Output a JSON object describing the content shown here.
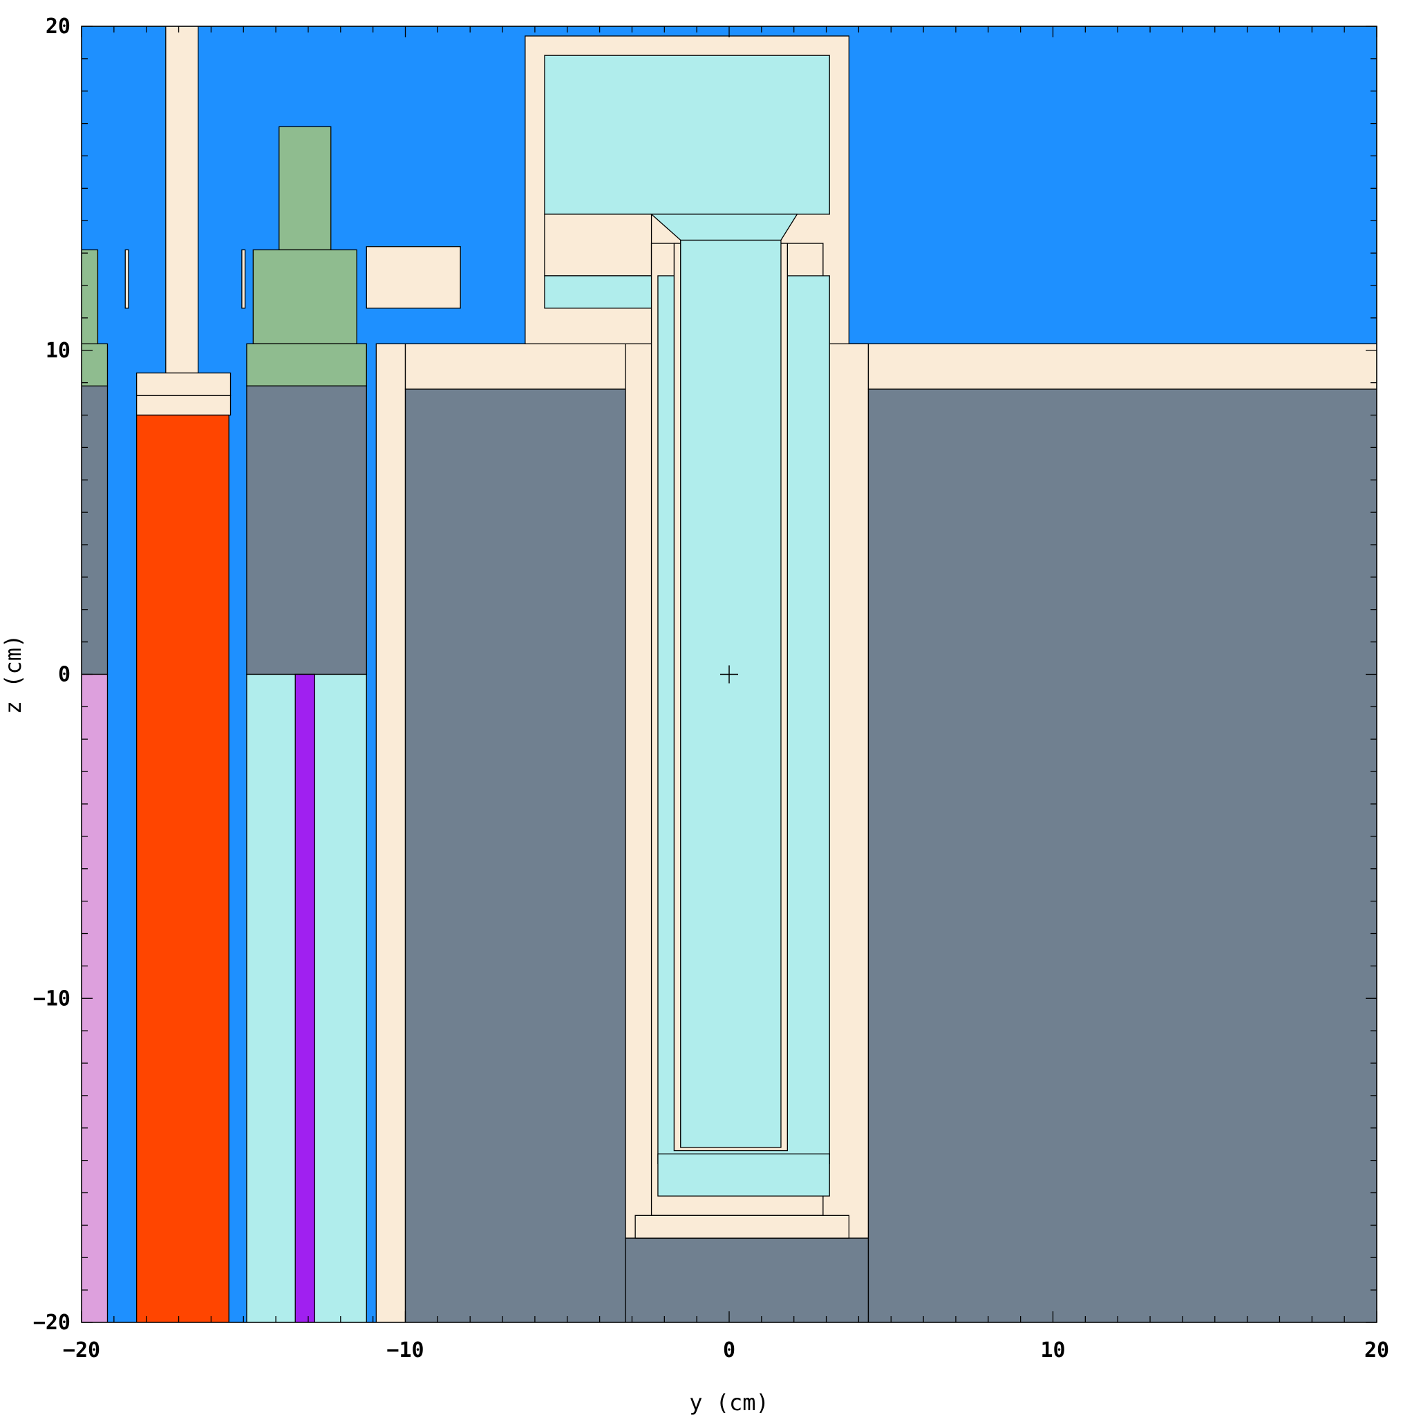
{
  "axes": {
    "x_label": "y (cm)",
    "y_label": "z (cm)",
    "x_range": [
      -20,
      20
    ],
    "y_range": [
      -20,
      20
    ],
    "x_major_ticks": [
      -20,
      -10,
      0,
      10,
      20
    ],
    "y_major_ticks": [
      -20,
      -10,
      0,
      10,
      20
    ],
    "x_tick_labels": [
      "−20",
      "−10",
      "0",
      "10",
      "20"
    ],
    "y_tick_labels": [
      "−20",
      "−10",
      "0",
      "10",
      "20"
    ],
    "minor_tick_step": 1
  },
  "colors": {
    "water": "#1E90FF",
    "steel": "#FAEBD7",
    "concrete": "#708090",
    "graphite": "#8FBC8F",
    "fuel": "#FF4500",
    "light_cyan": "#B0EDEC",
    "orchid": "#DDA0DD",
    "violet": "#A020F0"
  },
  "origin_marker": {
    "y": 0,
    "z": 0
  },
  "regions": [
    {
      "m": "water",
      "y0": -20,
      "y1": 20,
      "z0": -20,
      "z1": 20
    },
    {
      "m": "concrete",
      "y0": -20,
      "y1": -19.2,
      "z0": 0,
      "z1": 8.9
    },
    {
      "m": "orchid",
      "y0": -20,
      "y1": -19.2,
      "z0": -20,
      "z1": 0
    },
    {
      "m": "graphite",
      "y0": -20,
      "y1": -19.2,
      "z0": 8.9,
      "z1": 10.2
    },
    {
      "m": "graphite",
      "y0": -20,
      "y1": -19.5,
      "z0": 10.2,
      "z1": 13.1
    },
    {
      "m": "steel",
      "y0": -18.65,
      "y1": -18.55,
      "z0": 11.3,
      "z1": 13.1
    },
    {
      "m": "steel",
      "y0": -17.4,
      "y1": -16.4,
      "z0": 9.3,
      "z1": 20
    },
    {
      "m": "steel",
      "y0": -18.3,
      "y1": -15.4,
      "z0": 8.6,
      "z1": 9.3
    },
    {
      "m": "steel",
      "y0": -18.3,
      "y1": -15.4,
      "z0": 8.0,
      "z1": 8.6
    },
    {
      "m": "fuel",
      "y0": -18.3,
      "y1": -15.45,
      "z0": -20,
      "z1": 8.0
    },
    {
      "m": "steel",
      "y0": -15.05,
      "y1": -14.95,
      "z0": 11.3,
      "z1": 13.1
    },
    {
      "m": "graphite",
      "y0": -13.9,
      "y1": -12.3,
      "z0": 13.1,
      "z1": 16.9
    },
    {
      "m": "graphite",
      "y0": -14.7,
      "y1": -11.5,
      "z0": 10.2,
      "z1": 13.1
    },
    {
      "m": "graphite",
      "y0": -14.9,
      "y1": -11.2,
      "z0": 8.9,
      "z1": 10.2
    },
    {
      "m": "concrete",
      "y0": -14.9,
      "y1": -11.2,
      "z0": 0,
      "z1": 8.9
    },
    {
      "m": "light_cyan",
      "y0": -14.9,
      "y1": -11.2,
      "z0": -20,
      "z1": 0
    },
    {
      "m": "violet",
      "y0": -13.4,
      "y1": -12.8,
      "z0": -20,
      "z1": 0
    },
    {
      "m": "steel",
      "y0": -10.9,
      "y1": -10.0,
      "z0": -20,
      "z1": 10.2
    },
    {
      "m": "steel",
      "y0": -11.2,
      "y1": -8.3,
      "z0": 11.3,
      "z1": 13.2
    },
    {
      "m": "steel",
      "y0": -10.0,
      "y1": 4.3,
      "z0": 8.8,
      "z1": 10.2
    },
    {
      "m": "concrete",
      "y0": -10.0,
      "y1": -3.2,
      "z0": -20,
      "z1": 8.8
    },
    {
      "m": "steel",
      "y0": -3.2,
      "y1": 4.3,
      "z0": -17.4,
      "z1": 10.2
    },
    {
      "m": "concrete",
      "y0": -3.2,
      "y1": 4.3,
      "z0": -20,
      "z1": -17.4
    },
    {
      "m": "steel",
      "y0": 4.3,
      "y1": 20,
      "z0": 8.8,
      "z1": 10.2
    },
    {
      "m": "concrete",
      "y0": 4.3,
      "y1": 20,
      "z0": -20,
      "z1": 8.8
    },
    {
      "m": "steel",
      "y0": -6.3,
      "y1": 3.7,
      "z0": 10.2,
      "z1": 19.7
    },
    {
      "m": "light_cyan",
      "y0": -5.7,
      "y1": 3.1,
      "z0": 14.2,
      "z1": 19.1
    },
    {
      "m": "steel",
      "y0": -5.7,
      "y1": -2.4,
      "z0": 12.3,
      "z1": 14.2
    },
    {
      "m": "light_cyan",
      "y0": -5.7,
      "y1": -2.2,
      "z0": 11.3,
      "z1": 12.3
    },
    {
      "m": "steel",
      "y0": -2.4,
      "y1": 2.9,
      "z0": -16.7,
      "z1": 13.3
    },
    {
      "m": "light_cyan",
      "y0": -2.2,
      "y1": 3.1,
      "z0": -15.1,
      "z1": 12.3
    },
    {
      "m": "steel",
      "y0": -1.7,
      "y1": 1.8,
      "z0": -14.7,
      "z1": 13.3
    },
    {
      "m": "light_cyan",
      "y0": -1.5,
      "y1": 1.6,
      "z0": -14.6,
      "z1": 13.4
    },
    {
      "m": "light_cyan",
      "y0": -2.2,
      "y1": 3.1,
      "z0": -16.1,
      "z1": -14.8
    },
    {
      "m": "steel",
      "y0": -2.9,
      "y1": 3.7,
      "z0": -17.4,
      "z1": -16.7
    }
  ],
  "polygons": [
    {
      "m": "light_cyan",
      "points": [
        [
          -2.4,
          14.2
        ],
        [
          2.1,
          14.2
        ],
        [
          1.6,
          13.4
        ],
        [
          -1.5,
          13.4
        ]
      ]
    }
  ]
}
